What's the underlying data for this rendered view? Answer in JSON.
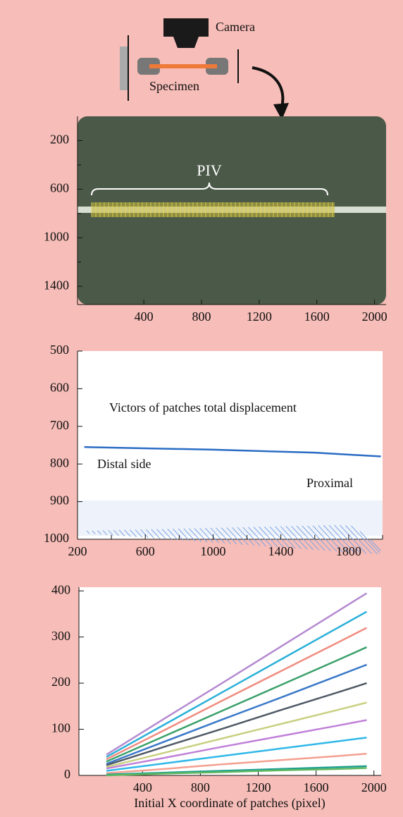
{
  "chart_data": [
    {
      "type": "image",
      "annotations": [
        "Camera",
        "Specimen",
        "PIV"
      ],
      "xlim": [
        -60,
        2080
      ],
      "xticks": [
        400,
        800,
        1200,
        1600,
        2000
      ],
      "ylim": [
        1550,
        0
      ],
      "yticks": [
        200,
        600,
        1000,
        1400
      ],
      "yminorticks": [
        400,
        800,
        1200
      ]
    },
    {
      "type": "line",
      "title": "Victors of patches total displacement",
      "annotations": [
        "Distal side",
        "Proximal"
      ],
      "xlim": [
        200,
        2000
      ],
      "xticks": [
        200,
        600,
        1000,
        1400,
        1800
      ],
      "xminorticks": [
        400,
        800,
        1200,
        1600,
        2000
      ],
      "ylim": [
        1000,
        500
      ],
      "yticks": [
        500,
        600,
        700,
        800,
        900,
        1000
      ],
      "x": [
        240,
        1000,
        1600,
        1990
      ],
      "series": [
        {
          "color": "#2a6cc4",
          "values": [
            755,
            762,
            770,
            780
          ]
        }
      ]
    },
    {
      "type": "line",
      "xlabel": "Initial X coordinate of patches (pixel)",
      "xlim": [
        -40,
        2050
      ],
      "xticks": [
        400,
        800,
        1200,
        1600,
        2000
      ],
      "ylim": [
        0,
        408
      ],
      "yticks": [
        0,
        100,
        200,
        300,
        400
      ],
      "x": [
        150,
        550,
        950,
        1350,
        1750,
        1950
      ],
      "series": [
        {
          "color": "#b48ad0",
          "values": [
            45,
            123,
            200,
            278,
            356,
            395
          ]
        },
        {
          "color": "#2ab0d8",
          "values": [
            40,
            110,
            180,
            250,
            320,
            355
          ]
        },
        {
          "color": "#f08c80",
          "values": [
            35,
            98,
            162,
            225,
            288,
            320
          ]
        },
        {
          "color": "#3aa06a",
          "values": [
            30,
            85,
            140,
            195,
            250,
            278
          ]
        },
        {
          "color": "#3a78c8",
          "values": [
            25,
            73,
            121,
            168,
            216,
            240
          ]
        },
        {
          "color": "#505a66",
          "values": [
            22,
            62,
            101,
            141,
            180,
            200
          ]
        },
        {
          "color": "#c8d080",
          "values": [
            18,
            49,
            80,
            111,
            142,
            158
          ]
        },
        {
          "color": "#c080d8",
          "values": [
            15,
            38,
            62,
            85,
            108,
            120
          ]
        },
        {
          "color": "#30b8e8",
          "values": [
            10,
            26,
            42,
            58,
            74,
            82
          ]
        },
        {
          "color": "#f4a090",
          "values": [
            5,
            14,
            24,
            33,
            42,
            47
          ]
        },
        {
          "color": "#20a090",
          "values": [
            2,
            6,
            10,
            14,
            18,
            20
          ]
        },
        {
          "color": "#60b860",
          "values": [
            0,
            4,
            7,
            11,
            14,
            16
          ]
        }
      ]
    }
  ]
}
